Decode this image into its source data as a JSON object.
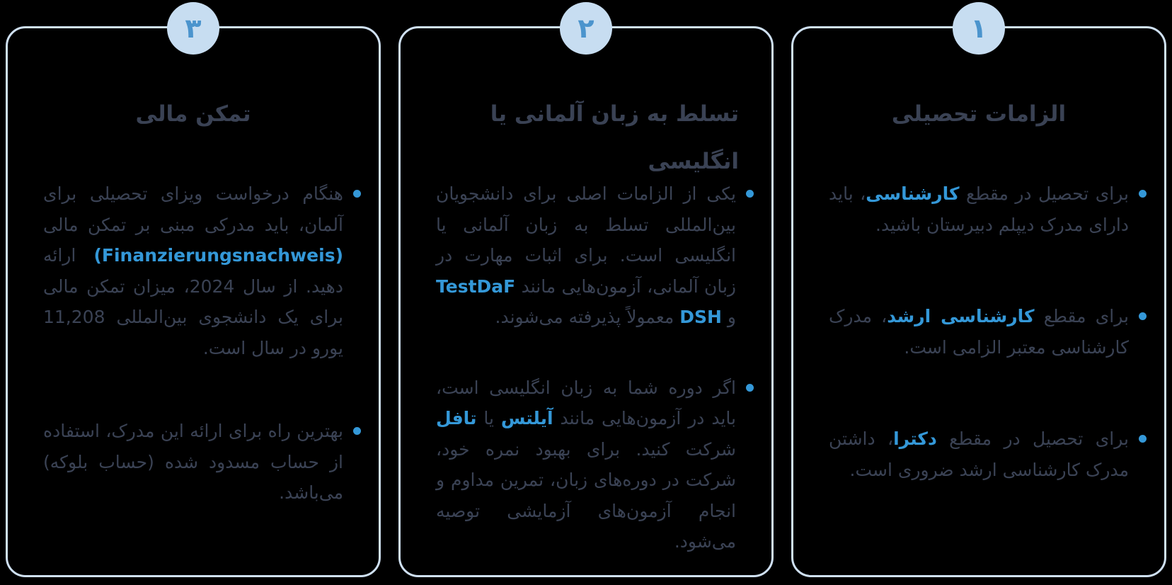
{
  "colors": {
    "bg": "#000000",
    "border": "#cfe0f2",
    "circle": "#c7ddf1",
    "number": "#4b94cd",
    "text": "#3a4254",
    "accent": "#3498d8"
  },
  "cards": [
    {
      "number": "۱",
      "title": "الزامات تحصیلی",
      "bullets": [
        [
          {
            "text": "برای تحصیل در مقطع "
          },
          {
            "text": "کارشناسی",
            "accent": true
          },
          {
            "text": "، باید دارای مدرک دیپلم دبیرستان باشید."
          }
        ],
        [
          {
            "text": "برای مقطع "
          },
          {
            "text": "کارشناسی ارشد",
            "accent": true
          },
          {
            "text": "، مدرک کارشناسی معتبر الزامی است."
          }
        ],
        [
          {
            "text": "برای تحصیل در مقطع "
          },
          {
            "text": "دکترا",
            "accent": true
          },
          {
            "text": "، داشتن مدرک کارشناسی ارشد ضروری است."
          }
        ]
      ]
    },
    {
      "number": "۲",
      "title": "تسلط به زبان آلمانی یا انگلیسی",
      "bullets": [
        [
          {
            "text": "یکی از الزامات اصلی برای دانشجویان بین‌المللی تسلط به زبان آلمانی یا انگلیسی است. برای اثبات مهارت در زبان آلمانی، آزمون‌هایی مانند "
          },
          {
            "text": "TestDaF",
            "accent": true
          },
          {
            "text": " و "
          },
          {
            "text": "DSH",
            "accent": true
          },
          {
            "text": " معمولاً پذیرفته می‌شوند."
          }
        ],
        [
          {
            "text": "اگر دوره شما به زبان انگلیسی است، باید در آزمون‌هایی مانند "
          },
          {
            "text": "آیلتس",
            "accent": true
          },
          {
            "text": " یا "
          },
          {
            "text": "تافل",
            "accent": true
          },
          {
            "text": " شرکت کنید. برای بهبود نمره خود، شرکت در دوره‌های زبان، تمرین مداوم و انجام آزمون‌های آزمایشی توصیه می‌شود."
          }
        ]
      ]
    },
    {
      "number": "۳",
      "title": "تمکن مالی",
      "bullets": [
        [
          {
            "text": "هنگام درخواست ویزای تحصیلی برای آلمان، باید مدرکی مبنی بر تمکن مالی "
          },
          {
            "text": "(Finanzierungsnachweis)",
            "accent": true
          },
          {
            "text": " ارائه دهید. از سال 2024، میزان تمکن مالی برای یک دانشجوی بین‌المللی 11,208 یورو در سال است."
          }
        ],
        [
          {
            "text": "بهترین راه برای ارائه این مدرک، استفاده از حساب مسدود شده (حساب بلوکه) می‌باشد."
          }
        ]
      ]
    }
  ]
}
